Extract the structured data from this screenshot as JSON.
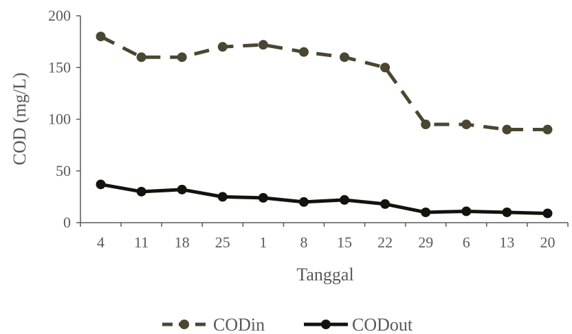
{
  "chart_data": {
    "type": "line",
    "categories": [
      "4",
      "11",
      "18",
      "25",
      "1",
      "8",
      "15",
      "22",
      "29",
      "6",
      "13",
      "20"
    ],
    "series": [
      {
        "name": "CODin",
        "values": [
          180,
          160,
          160,
          170,
          172,
          165,
          160,
          150,
          95,
          95,
          90,
          90
        ],
        "color": "#4a4632",
        "style": "dashed"
      },
      {
        "name": "CODout",
        "values": [
          37,
          30,
          32,
          25,
          24,
          20,
          22,
          18,
          10,
          11,
          10,
          9
        ],
        "color": "#14120c",
        "style": "solid"
      }
    ],
    "xlabel": "Tanggal",
    "ylabel": "COD (mg/L)",
    "ylim": [
      0,
      200
    ],
    "yticks": [
      0,
      50,
      100,
      150,
      200
    ],
    "grid": false,
    "legend_position": "bottom-center"
  }
}
